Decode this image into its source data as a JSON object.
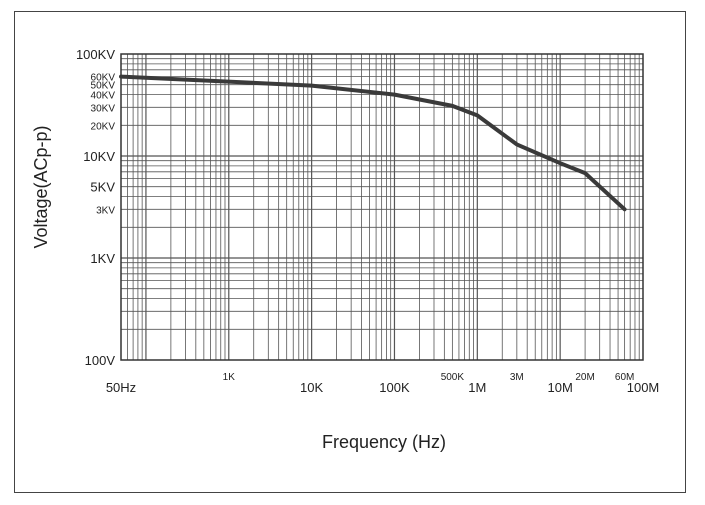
{
  "chart_data": {
    "type": "line",
    "title": "",
    "xlabel": "Frequency (Hz)",
    "ylabel": "Voltage(ACp-p)",
    "x_scale": "log",
    "y_scale": "log",
    "xlim": [
      50,
      100000000
    ],
    "ylim": [
      100,
      100000
    ],
    "grid": true,
    "x_ticks": [
      {
        "value": 50,
        "label": "50Hz",
        "size": "large"
      },
      {
        "value": 1000,
        "label": "1K",
        "size": "small"
      },
      {
        "value": 10000,
        "label": "10K",
        "size": "large"
      },
      {
        "value": 100000,
        "label": "100K",
        "size": "large"
      },
      {
        "value": 500000,
        "label": "500K",
        "size": "small"
      },
      {
        "value": 1000000,
        "label": "1M",
        "size": "large"
      },
      {
        "value": 3000000,
        "label": "3M",
        "size": "small"
      },
      {
        "value": 10000000,
        "label": "10M",
        "size": "large"
      },
      {
        "value": 20000000,
        "label": "20M",
        "size": "small"
      },
      {
        "value": 60000000,
        "label": "60M",
        "size": "small"
      },
      {
        "value": 100000000,
        "label": "100M",
        "size": "large"
      }
    ],
    "y_ticks": [
      {
        "value": 100000,
        "label": "100KV",
        "size": "large"
      },
      {
        "value": 60000,
        "label": "60KV",
        "size": "small"
      },
      {
        "value": 50000,
        "label": "50KV",
        "size": "small"
      },
      {
        "value": 40000,
        "label": "40KV",
        "size": "small"
      },
      {
        "value": 30000,
        "label": "30KV",
        "size": "small"
      },
      {
        "value": 20000,
        "label": "20KV",
        "size": "small"
      },
      {
        "value": 10000,
        "label": "10KV",
        "size": "large"
      },
      {
        "value": 5000,
        "label": "5KV",
        "size": "large"
      },
      {
        "value": 3000,
        "label": "3KV",
        "size": "small"
      },
      {
        "value": 1000,
        "label": "1KV",
        "size": "large"
      },
      {
        "value": 100,
        "label": "100V",
        "size": "large"
      }
    ],
    "series": [
      {
        "color": "#3a3a3a",
        "points": [
          {
            "x": 50,
            "y": 60000
          },
          {
            "x": 10000,
            "y": 49000
          },
          {
            "x": 100000,
            "y": 40000
          },
          {
            "x": 500000,
            "y": 31000
          },
          {
            "x": 1000000,
            "y": 25000
          },
          {
            "x": 3000000,
            "y": 13000
          },
          {
            "x": 10000000,
            "y": 8500
          },
          {
            "x": 20000000,
            "y": 6800
          },
          {
            "x": 60000000,
            "y": 3000
          }
        ]
      }
    ]
  }
}
